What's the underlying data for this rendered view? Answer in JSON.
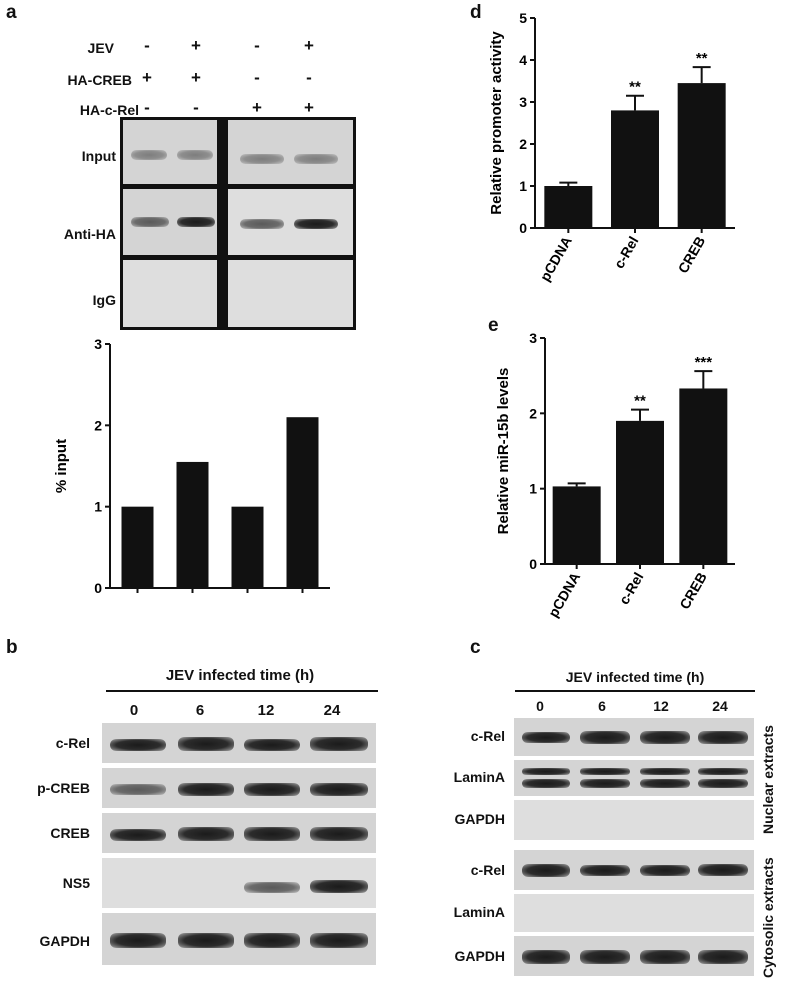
{
  "panel_a": {
    "letter": "a",
    "conditions": [
      {
        "name": "JEV",
        "signs": [
          "-",
          "+",
          "-",
          "+"
        ]
      },
      {
        "name": "HA-CREB",
        "signs": [
          "+",
          "+",
          "-",
          "-"
        ]
      },
      {
        "name": "HA-c-Rel",
        "signs": [
          "-",
          "-",
          "+",
          "+"
        ]
      }
    ],
    "rows": [
      "Input",
      "Anti-HA",
      "IgG"
    ]
  },
  "panel_d": {
    "letter": "d"
  },
  "panel_e": {
    "letter": "e"
  },
  "panel_b": {
    "letter": "b",
    "time_header": "JEV infected time (h)",
    "times": [
      "0",
      "6",
      "12",
      "24"
    ],
    "rows": [
      "c-Rel",
      "p-CREB",
      "CREB",
      "NS5",
      "GAPDH"
    ]
  },
  "panel_c": {
    "letter": "c",
    "time_header": "JEV infected time (h)",
    "times": [
      "0",
      "6",
      "12",
      "24"
    ],
    "nuclear_rows": [
      "c-Rel",
      "LaminA",
      "GAPDH"
    ],
    "cytosolic_rows": [
      "c-Rel",
      "LaminA",
      "GAPDH"
    ],
    "nuclear_label": "Nuclear extracts",
    "cytosolic_label": "Cytosolic extracts"
  },
  "chart_data": [
    {
      "id": "a",
      "type": "bar",
      "categories": [
        "",
        "",
        "",
        ""
      ],
      "values": [
        1.0,
        1.55,
        1.0,
        2.1
      ],
      "title": "",
      "xlabel": "",
      "ylabel": "% input",
      "ylim": [
        0,
        3
      ],
      "yticks": [
        0,
        1,
        2,
        3
      ],
      "bar_color": "#111111"
    },
    {
      "id": "d",
      "type": "bar",
      "categories": [
        "pCDNA",
        "c-Rel",
        "CREB"
      ],
      "values": [
        1.0,
        2.8,
        3.45
      ],
      "errors": [
        0.08,
        0.35,
        0.38
      ],
      "significance": [
        "",
        "**",
        "**"
      ],
      "title": "",
      "xlabel": "",
      "ylabel": "Relative promoter activity",
      "ylim": [
        0,
        5
      ],
      "yticks": [
        0,
        1,
        2,
        3,
        4,
        5
      ],
      "bar_color": "#111111"
    },
    {
      "id": "e",
      "type": "bar",
      "categories": [
        "pCDNA",
        "c-Rel",
        "CREB"
      ],
      "values": [
        1.03,
        1.9,
        2.33
      ],
      "errors": [
        0.04,
        0.15,
        0.23
      ],
      "significance": [
        "",
        "**",
        "***"
      ],
      "title": "",
      "xlabel": "",
      "ylabel": "Relative miR-15b levels",
      "ylim": [
        0,
        3
      ],
      "yticks": [
        0,
        1,
        2,
        3
      ],
      "bar_color": "#111111"
    }
  ]
}
